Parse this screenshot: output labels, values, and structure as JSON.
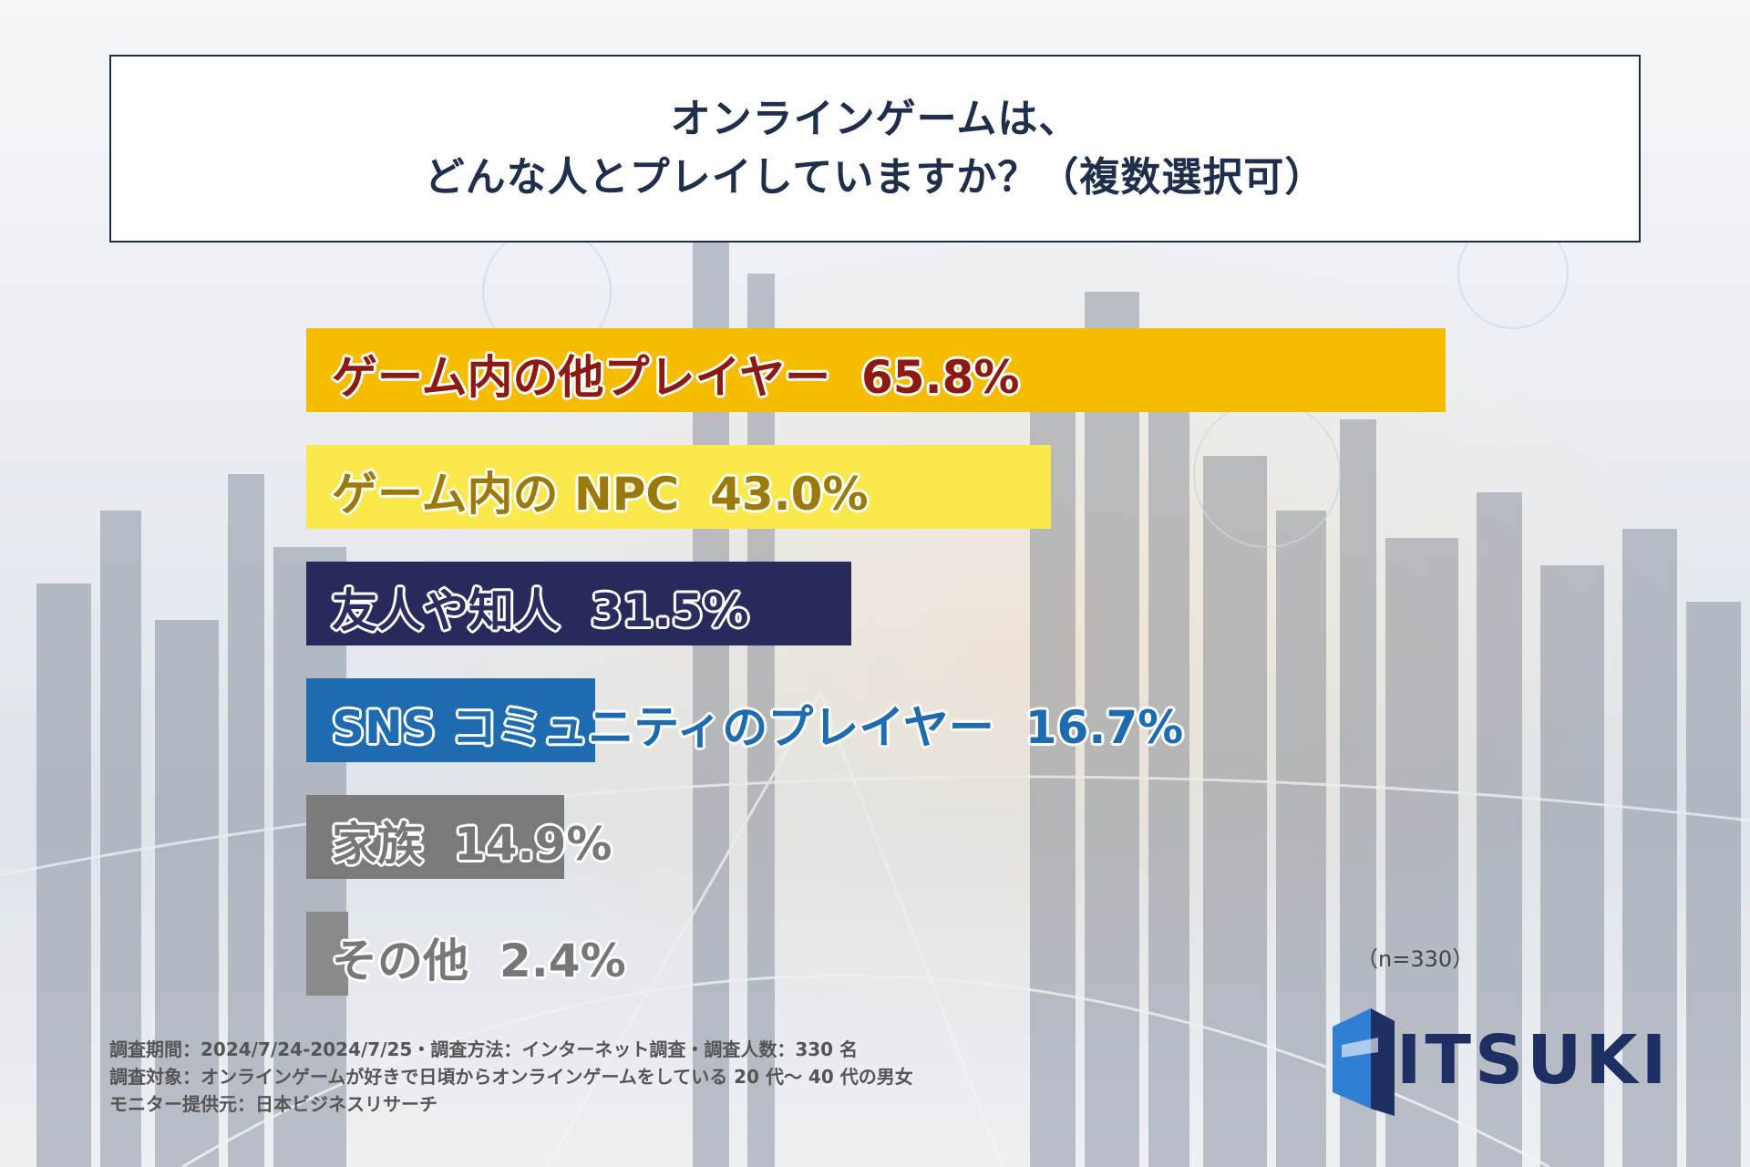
{
  "title": {
    "line1": "オンラインゲームは、",
    "line2": "どんな人とプレイしていますか？（複数選択可）"
  },
  "chart_data": {
    "type": "bar",
    "orientation": "horizontal",
    "categories": [
      "ゲーム内の他プレイヤー",
      "ゲーム内の NPC",
      "友人や知人",
      "SNS コミュニティのプレイヤー",
      "家族",
      "その他"
    ],
    "values": [
      65.8,
      43.0,
      31.5,
      16.7,
      14.9,
      2.4
    ],
    "value_labels": [
      "65.8%",
      "43.0%",
      "31.5%",
      "16.7%",
      "14.9%",
      "2.4%"
    ],
    "bar_colors": [
      "#f6bd00",
      "#fae84c",
      "#272a5a",
      "#1f6bb0",
      "#7a7a7a",
      "#8a8a8a"
    ],
    "label_colors": [
      "#8b1a12",
      "#9c7a0a",
      "#2a2d5e",
      "#1f6bb0",
      "#777777",
      "#777777"
    ],
    "xlim": [
      0,
      100
    ],
    "legend": "none",
    "grid": false
  },
  "sample_note": "（n=330）",
  "footnotes": [
    "調査期間：2024/7/24-2024/7/25・調査方法：インターネット調査・調査人数：330 名",
    "調査対象：オンラインゲームが好きで日頃からオンラインゲームをしている 20 代〜 40 代の男女",
    "モニター提供元：日本ビジネスリサーチ"
  ],
  "logo": {
    "text": "ITSUKI",
    "color": "#1d2f63",
    "accent": "#2f7fd6"
  }
}
